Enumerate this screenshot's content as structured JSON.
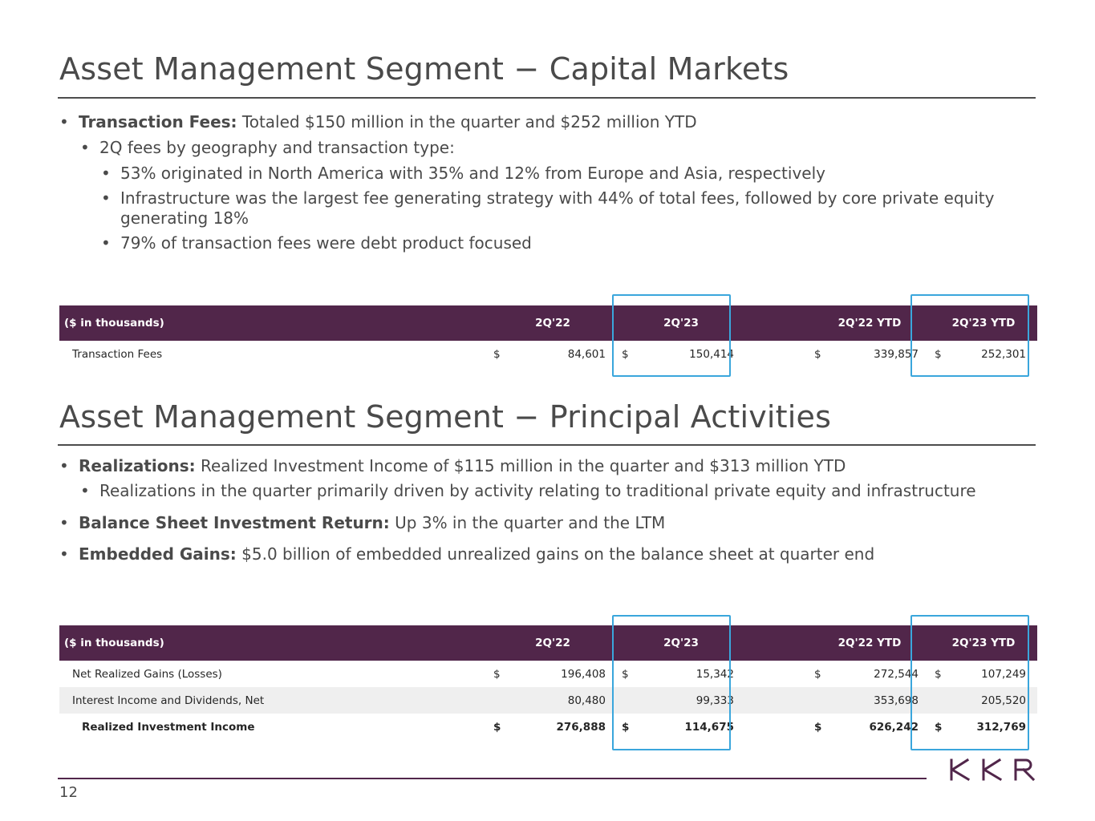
{
  "section1": {
    "title": "Asset Management Segment − Capital Markets",
    "bullets": [
      {
        "bold": "Transaction Fees:",
        "text": " Totaled $150 million in the quarter and $252 million YTD"
      },
      {
        "bold": "",
        "text": "2Q fees by geography and transaction type:"
      },
      {
        "bold": "",
        "text": "53% originated in North America with 35% and 12% from Europe and Asia, respectively"
      },
      {
        "bold": "",
        "text": "Infrastructure was the largest fee generating strategy with 44% of total fees, followed by core private equity generating 18%"
      },
      {
        "bold": "",
        "text": "79% of transaction fees were debt product focused"
      }
    ],
    "table": {
      "headers": [
        "($ in thousands)",
        "2Q'22",
        "2Q'23",
        "2Q'22 YTD",
        "2Q'23 YTD"
      ],
      "rows": [
        {
          "label": "Transaction Fees",
          "cur": [
            "$",
            "$",
            "$",
            "$"
          ],
          "values": [
            "84,601",
            "150,414",
            "339,857",
            "252,301"
          ]
        }
      ]
    }
  },
  "section2": {
    "title": "Asset Management Segment − Principal Activities",
    "bullets": [
      {
        "bold": "Realizations:",
        "text": " Realized Investment Income of $115 million in the quarter and $313 million YTD"
      },
      {
        "bold": "",
        "text": "Realizations in the quarter primarily driven by activity relating to traditional private equity and infrastructure"
      },
      {
        "bold": "Balance Sheet Investment Return:",
        "text": " Up 3% in the quarter and the LTM"
      },
      {
        "bold": "Embedded Gains:",
        "text": " $5.0 billion of embedded unrealized gains on the balance sheet at quarter end"
      }
    ],
    "table": {
      "headers": [
        "($ in thousands)",
        "2Q'22",
        "2Q'23",
        "2Q'22 YTD",
        "2Q'23 YTD"
      ],
      "rows": [
        {
          "label": "Net Realized Gains (Losses)",
          "cur": [
            "$",
            "$",
            "$",
            "$"
          ],
          "values": [
            "196,408",
            "15,342",
            "272,544",
            "107,249"
          ]
        },
        {
          "label": "Interest Income and Dividends, Net",
          "cur": [
            "",
            "",
            "",
            ""
          ],
          "values": [
            "80,480",
            "99,333",
            "353,698",
            "205,520"
          ]
        },
        {
          "label": "Realized Investment Income",
          "cur": [
            "$",
            "$",
            "$",
            "$"
          ],
          "values": [
            "276,888",
            "114,675",
            "626,242",
            "312,769"
          ]
        }
      ]
    }
  },
  "footer": {
    "page_number": "12",
    "logo_text": "KKR"
  },
  "colors": {
    "header_bg": "#51264a",
    "highlight_border": "#3aa6dc",
    "row_shade": "#efefef"
  }
}
